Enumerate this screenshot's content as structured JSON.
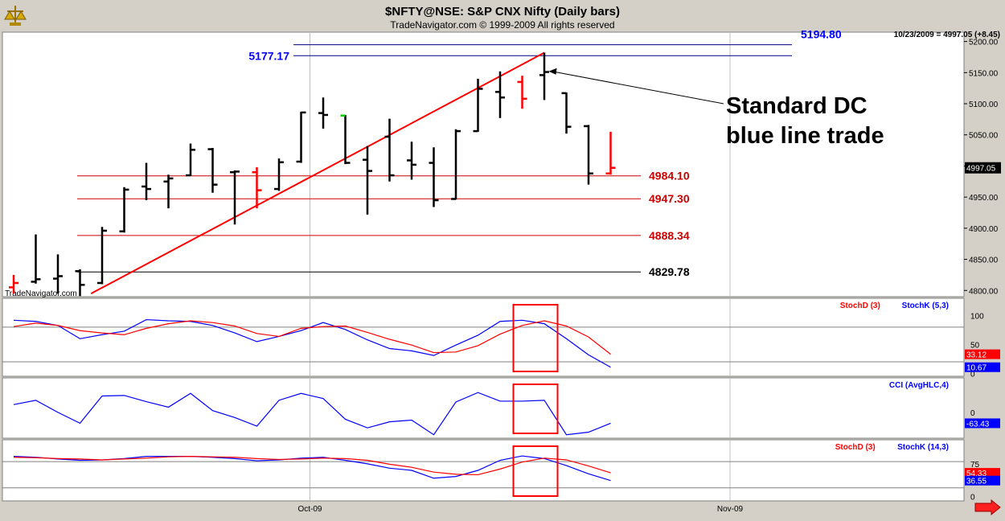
{
  "header": {
    "title": "$NFTY@NSE:  S&P CNX Nifty  (Daily bars)",
    "copyright": "TradeNavigator.com © 1999-2009 All rights reserved",
    "last_bar_info": "10/23/2009 = 4997.05 (+8.45)",
    "watermark": "TradeNavigator.com"
  },
  "colors": {
    "background": "#ffffff",
    "frame": "#d4d0c8",
    "bar_up": "#000000",
    "bar_down": "#ff0000",
    "bar_green": "#00cc00",
    "stoch_d": "#ff0000",
    "stoch_k": "#0000ff",
    "cci": "#0000ff",
    "trendline": "#ff0000",
    "blue_level": "#0000ff",
    "red_level": "#cc0000",
    "highlight_box": "#ff0000"
  },
  "annotation": {
    "lines": [
      "Standard DC",
      "blue line trade"
    ]
  },
  "levels": [
    {
      "value": 5194.8,
      "label": "5194.80",
      "color": "#0000ff",
      "line_color": "#000080",
      "side": "right"
    },
    {
      "value": 5177.17,
      "label": "5177.17",
      "color": "#0000ff",
      "line_color": "#000080",
      "side": "left"
    },
    {
      "value": 4984.1,
      "label": "4984.10",
      "color": "#cc0000",
      "line_color": "#cc0000",
      "side": "right"
    },
    {
      "value": 4947.3,
      "label": "4947.30",
      "color": "#cc0000",
      "line_color": "#cc0000",
      "side": "right"
    },
    {
      "value": 4888.34,
      "label": "4888.34",
      "color": "#cc0000",
      "line_color": "#cc0000",
      "side": "right"
    },
    {
      "value": 4829.78,
      "label": "4829.78",
      "color": "#000000",
      "line_color": "#000000",
      "side": "right"
    }
  ],
  "chart_data": {
    "type": "ohlc",
    "title": "$NFTY@NSE:  S&P CNX Nifty  (Daily bars)",
    "ylim": [
      4790,
      5215
    ],
    "price_ticks": [
      "5200.00",
      "5150.00",
      "5100.00",
      "5050.00",
      "5000.00",
      "4950.00",
      "4900.00",
      "4850.00",
      "4800.00"
    ],
    "last_price": "4997.05",
    "x_labels": [
      {
        "label": "Oct-09",
        "bar": 13.4
      },
      {
        "label": "Nov-09",
        "bar": 32.4
      }
    ],
    "bars": [
      {
        "o": 4805,
        "h": 4825,
        "l": 4795,
        "c": 4812,
        "color": "down"
      },
      {
        "o": 4814,
        "h": 4890,
        "l": 4811,
        "c": 4818
      },
      {
        "o": 4819,
        "h": 4858,
        "l": 4795,
        "c": 4823
      },
      {
        "o": 4831,
        "h": 4834,
        "l": 4791,
        "c": 4809
      },
      {
        "o": 4812,
        "h": 4902,
        "l": 4810,
        "c": 4896
      },
      {
        "o": 4895,
        "h": 4966,
        "l": 4893,
        "c": 4962
      },
      {
        "o": 4967,
        "h": 5005,
        "l": 4945,
        "c": 4963
      },
      {
        "o": 4975,
        "h": 4986,
        "l": 4932,
        "c": 4980
      },
      {
        "o": 4985,
        "h": 5036,
        "l": 4984,
        "c": 5026
      },
      {
        "o": 5027,
        "h": 5029,
        "l": 4957,
        "c": 4970
      },
      {
        "o": 4990,
        "h": 4993,
        "l": 4906,
        "c": 4991
      },
      {
        "o": 4990,
        "h": 4998,
        "l": 4932,
        "c": 4961,
        "color": "down"
      },
      {
        "o": 4963,
        "h": 5012,
        "l": 4960,
        "c": 5006
      },
      {
        "o": 5007,
        "h": 5087,
        "l": 5005,
        "c": 5086
      },
      {
        "o": 5085,
        "h": 5110,
        "l": 5060,
        "c": 5082
      },
      {
        "o": 5081,
        "h": 5082,
        "l": 5003,
        "c": 5005,
        "green_open": true
      },
      {
        "o": 5010,
        "h": 5032,
        "l": 4922,
        "c": 4992
      },
      {
        "o": 5047,
        "h": 5076,
        "l": 4975,
        "c": 4985
      },
      {
        "o": 5009,
        "h": 5039,
        "l": 4978,
        "c": 5002
      },
      {
        "o": 5005,
        "h": 5030,
        "l": 4934,
        "c": 4945
      },
      {
        "o": 4947,
        "h": 5059,
        "l": 4946,
        "c": 5056
      },
      {
        "o": 5056,
        "h": 5140,
        "l": 5055,
        "c": 5124
      },
      {
        "o": 5119,
        "h": 5152,
        "l": 5077,
        "c": 5110
      },
      {
        "o": 5135,
        "h": 5145,
        "l": 5092,
        "c": 5108,
        "color": "down"
      },
      {
        "o": 5146,
        "h": 5182,
        "l": 5106,
        "c": 5151
      },
      {
        "o": 5117,
        "h": 5118,
        "l": 5052,
        "c": 5063
      },
      {
        "o": 5064,
        "h": 5066,
        "l": 4970,
        "c": 4988
      },
      {
        "o": 4988,
        "h": 5055,
        "l": 4986,
        "c": 4997,
        "color": "down"
      }
    ],
    "trendline": [
      {
        "bar": 3.5,
        "value": 4795
      },
      {
        "bar": 24,
        "value": 5182
      }
    ],
    "annotation_arrow_target": {
      "bar": 24.2,
      "value": 5152
    },
    "panels": [
      {
        "id": "stoch-fast",
        "legend": [
          {
            "label": "StochD (3)",
            "color": "#ff0000"
          },
          {
            "label": "StochK (5,3)",
            "color": "#0000ff"
          }
        ],
        "ylim": [
          -5,
          130
        ],
        "axis_ticks": [
          "100",
          "50",
          "0"
        ],
        "ref_lines": [
          80,
          20
        ],
        "last_values": [
          {
            "label": "33.12",
            "color": "#ff0000"
          },
          {
            "label": "10.67",
            "color": "#0000ff"
          }
        ],
        "series": [
          {
            "name": "StochK (5,3)",
            "color": "#0000ff",
            "values": [
              92,
              90,
              83,
              60,
              67,
              73,
              93,
              91,
              90,
              83,
              70,
              55,
              64,
              74,
              88,
              76,
              58,
              43,
              39,
              31,
              49,
              66,
              90,
              92,
              86,
              60,
              32,
              10.67
            ]
          },
          {
            "name": "StochD (3)",
            "color": "#ff0000",
            "values": [
              81,
              87,
              83,
              74,
              70,
              67,
              78,
              86,
              91,
              88,
              82,
              69,
              64,
              78,
              81,
              82,
              71,
              59,
              49,
              36,
              37,
              48,
              68,
              83,
              91,
              82,
              63,
              33.12
            ]
          }
        ]
      },
      {
        "id": "cci",
        "legend": [
          {
            "label": "CCI (AvgHLC,4)",
            "color": "#0000ff"
          }
        ],
        "ylim": [
          -150,
          200
        ],
        "axis_ticks": [
          "0"
        ],
        "ref_lines": [],
        "last_values": [
          {
            "label": "-63.43",
            "color": "#0000ff"
          }
        ],
        "series": [
          {
            "name": "CCI (AvgHLC,4)",
            "color": "#0000ff",
            "values": [
              45,
              70,
              0,
              -63,
              95,
              98,
              62,
              30,
              110,
              10,
              -30,
              -80,
              70,
              110,
              80,
              -40,
              -90,
              -55,
              -45,
              -130,
              60,
              115,
              65,
              65,
              70,
              -130,
              -115,
              -63.43
            ]
          }
        ]
      },
      {
        "id": "stoch-slow",
        "legend": [
          {
            "label": "StochD (3)",
            "color": "#ff0000"
          },
          {
            "label": "StochK (14,3)",
            "color": "#0000ff"
          }
        ],
        "ylim": [
          -10,
          130
        ],
        "axis_ticks": [
          "75",
          "0"
        ],
        "ref_lines": [
          80,
          20
        ],
        "last_values": [
          {
            "label": "54.33",
            "color": "#ff0000"
          },
          {
            "label": "36.55",
            "color": "#0000ff"
          }
        ],
        "series": [
          {
            "name": "StochK (14,3)",
            "color": "#0000ff",
            "values": [
              92,
              90,
              86,
              83,
              84,
              87,
              92,
              92,
              92,
              90,
              87,
              82,
              84,
              88,
              90,
              83,
              75,
              65,
              60,
              42,
              46,
              60,
              83,
              93,
              87,
              71,
              52,
              36.55
            ]
          },
          {
            "name": "StochD (3)",
            "color": "#ff0000",
            "values": [
              90,
              89,
              87,
              86,
              84,
              86,
              88,
              91,
              92,
              91,
              90,
              87,
              85,
              86,
              88,
              87,
              83,
              74,
              67,
              56,
              51,
              50,
              63,
              79,
              88,
              84,
              70,
              54.33
            ]
          }
        ]
      }
    ]
  }
}
